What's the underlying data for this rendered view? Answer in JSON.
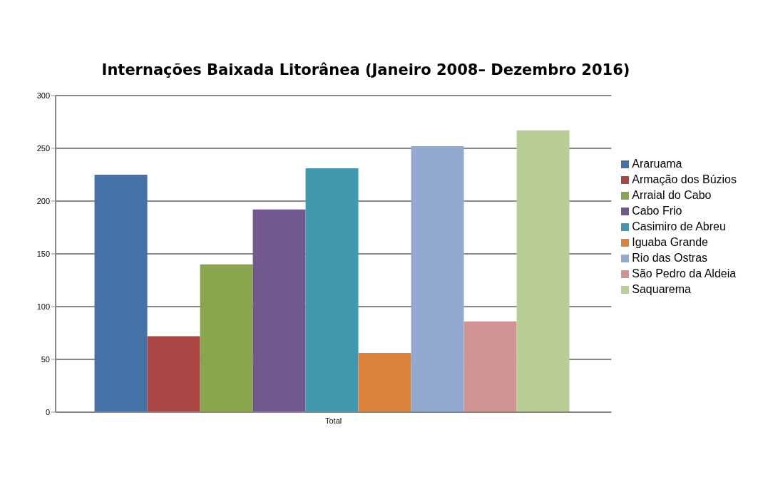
{
  "chart_data": {
    "type": "bar",
    "title": "Internações Baixada Litorânea (Janeiro 2008– Dezembro 2016)",
    "categories": [
      "Total"
    ],
    "series": [
      {
        "name": "Araruama",
        "color": "#4572a7",
        "values": [
          225
        ]
      },
      {
        "name": "Armação dos Búzios",
        "color": "#aa4643",
        "values": [
          72
        ]
      },
      {
        "name": "Arraial do Cabo",
        "color": "#89a54e",
        "values": [
          140
        ]
      },
      {
        "name": "Cabo Frio",
        "color": "#71588f",
        "values": [
          192
        ]
      },
      {
        "name": "Casimiro de Abreu",
        "color": "#4198af",
        "values": [
          231
        ]
      },
      {
        "name": "Iguaba Grande",
        "color": "#db843d",
        "values": [
          56
        ]
      },
      {
        "name": "Rio das Ostras",
        "color": "#93a9cf",
        "values": [
          252
        ]
      },
      {
        "name": "São Pedro da Aldeia",
        "color": "#d19392",
        "values": [
          86
        ]
      },
      {
        "name": "Saquarema",
        "color": "#b9cd96",
        "values": [
          267
        ]
      }
    ],
    "ylim": [
      0,
      300
    ],
    "yticks": [
      0,
      50,
      100,
      150,
      200,
      250,
      300
    ],
    "grid": "y",
    "legend": "right"
  }
}
